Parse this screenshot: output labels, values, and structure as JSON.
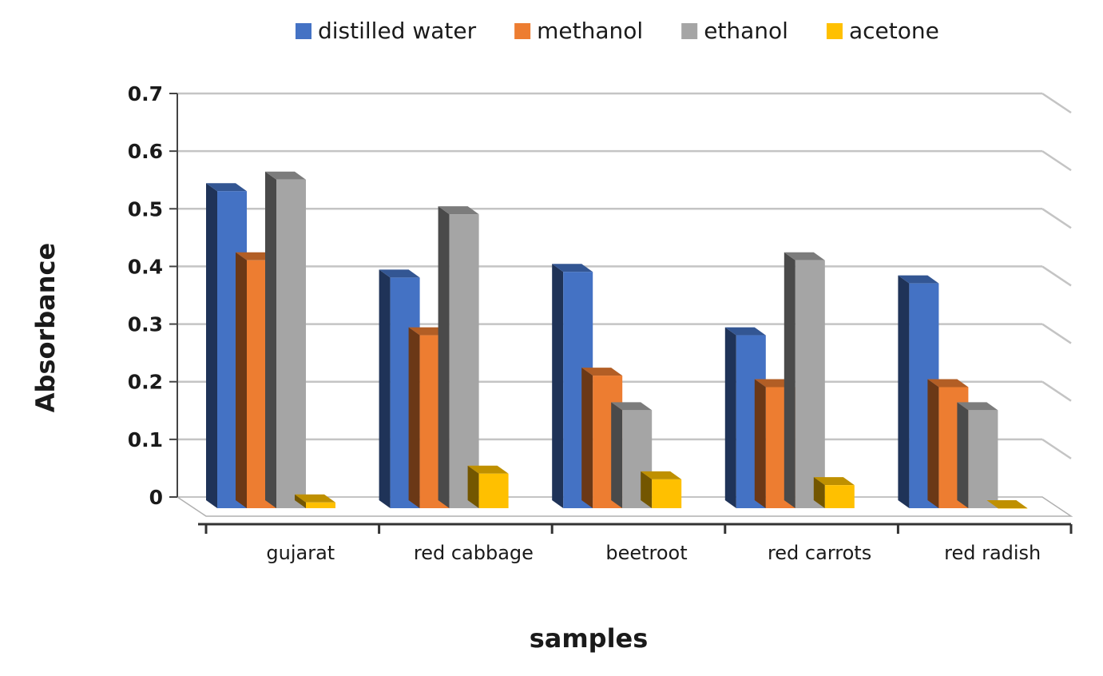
{
  "chart_data": {
    "type": "bar",
    "title": "",
    "xlabel": "samples",
    "ylabel": "Absorbance",
    "ylim": [
      0,
      0.7
    ],
    "yticks": [
      "0",
      "0.1",
      "0.2",
      "0.3",
      "0.4",
      "0.5",
      "0.6",
      "0.7"
    ],
    "grid": true,
    "legend_position": "top",
    "categories": [
      "gujarat",
      "red cabbage",
      "beetroot",
      "red carrots",
      "red radish"
    ],
    "series": [
      {
        "name": "distilled water",
        "color": "#4472C4",
        "values": [
          0.55,
          0.4,
          0.41,
          0.3,
          0.39
        ]
      },
      {
        "name": "methanol",
        "color": "#ED7D31",
        "values": [
          0.43,
          0.3,
          0.23,
          0.21,
          0.21
        ]
      },
      {
        "name": "ethanol",
        "color": "#A5A5A5",
        "values": [
          0.57,
          0.51,
          0.17,
          0.43,
          0.17
        ]
      },
      {
        "name": "acetone",
        "color": "#FFC000",
        "values": [
          0.01,
          0.06,
          0.05,
          0.04,
          0.0
        ]
      }
    ]
  }
}
